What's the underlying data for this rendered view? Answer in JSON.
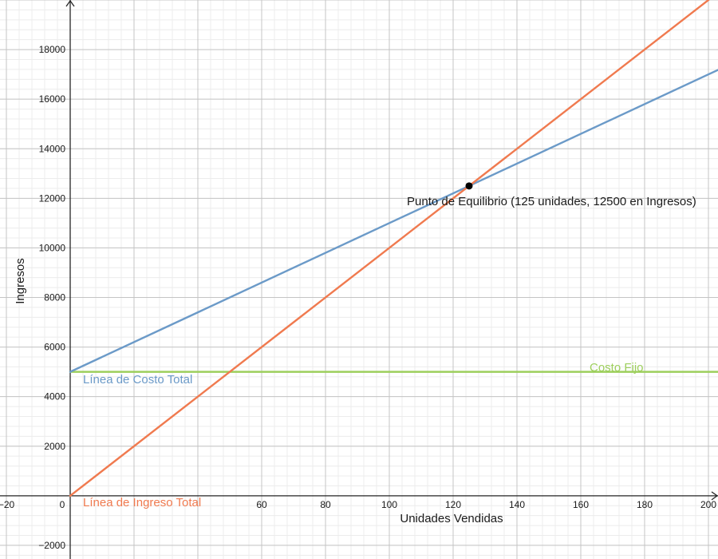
{
  "chart_data": {
    "type": "line",
    "xlabel": "Unidades Vendidas",
    "ylabel": "Ingresos",
    "xlim": [
      -22,
      203
    ],
    "ylim": [
      -2550,
      20000
    ],
    "x_ticks": [
      -20,
      0,
      20,
      40,
      60,
      80,
      100,
      120,
      140,
      160,
      180,
      200
    ],
    "x_tick_labels": [
      "−20",
      "0",
      "",
      "",
      "60",
      "80",
      "100",
      "120",
      "140",
      "160",
      "180",
      "200"
    ],
    "y_ticks": [
      -2000,
      2000,
      4000,
      6000,
      8000,
      10000,
      12000,
      14000,
      16000,
      18000
    ],
    "y_tick_labels": [
      "−2000",
      "2000",
      "4000",
      "6000",
      "8000",
      "10000",
      "12000",
      "14000",
      "16000",
      "18000"
    ],
    "minor_x_step": 4,
    "minor_y_step": 400,
    "grid": true,
    "series": [
      {
        "name": "Línea de Costo Total",
        "color": "#6b9ac8",
        "x": [
          0,
          203
        ],
        "y": [
          5000,
          17180
        ]
      },
      {
        "name": "Línea de Ingreso Total",
        "color": "#f07a4f",
        "x": [
          0,
          203
        ],
        "y": [
          0,
          20300
        ]
      },
      {
        "name": "Costo Fijo",
        "color": "#9dcf5c",
        "x": [
          0,
          203
        ],
        "y": [
          5000,
          5000
        ]
      }
    ],
    "point": {
      "x": 125,
      "y": 12500,
      "color": "#000000",
      "label": "Punto de Equilibrio (125 unidades, 12500 en Ingresos)"
    }
  }
}
